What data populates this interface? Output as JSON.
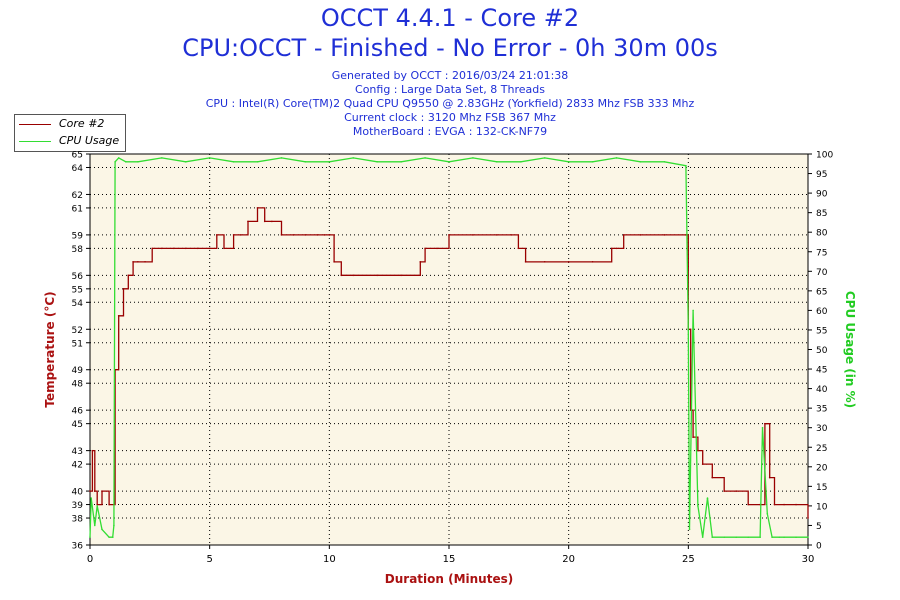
{
  "header": {
    "title": "OCCT 4.4.1 - Core #2",
    "subtitle": "CPU:OCCT - Finished - No Error - 0h 30m 00s",
    "info_lines": [
      "Generated by OCCT : 2016/03/24 21:01:38",
      "Config : Large Data Set, 8 Threads",
      "CPU : Intel(R) Core(TM)2 Quad CPU Q9550 @ 2.83GHz (Yorkfield) 2833 Mhz FSB 333 Mhz",
      "Current clock : 3120 Mhz FSB 367 Mhz",
      "MotherBoard : EVGA : 132-CK-NF79"
    ]
  },
  "chart_data": {
    "type": "line",
    "title": "OCCT 4.4.1 - Core #2",
    "xlabel": "Duration (Minutes)",
    "ylabel_left": "Temperature (°C)",
    "ylabel_right": "CPU Usage (in %)",
    "xlim": [
      0,
      30
    ],
    "ylim_left": [
      36,
      65
    ],
    "ylim_right": [
      0,
      100
    ],
    "grid": true,
    "legend_position": "top-left",
    "x_ticks": [
      0,
      5,
      10,
      15,
      20,
      25,
      30
    ],
    "y_left_ticks": [
      36,
      38,
      39,
      40,
      42,
      43,
      45,
      46,
      48,
      49,
      51,
      52,
      54,
      55,
      56,
      58,
      59,
      61,
      62,
      64,
      65
    ],
    "y_right_ticks": [
      0,
      5,
      10,
      15,
      20,
      25,
      30,
      35,
      40,
      45,
      50,
      55,
      60,
      65,
      70,
      75,
      80,
      85,
      90,
      95,
      100
    ],
    "colors": {
      "temperature": "#990000",
      "usage": "#33dd33",
      "axis_label": "#aa1111",
      "right_label": "#22cc22",
      "plot_bg": "#fbf6e6"
    },
    "series": [
      {
        "name": "Core #2",
        "axis": "left",
        "x": [
          0,
          0.1,
          0.2,
          0.3,
          0.5,
          0.8,
          1.0,
          1.05,
          1.2,
          1.4,
          1.6,
          1.8,
          2.0,
          2.3,
          2.6,
          3.0,
          3.5,
          4.0,
          4.5,
          5.0,
          5.3,
          5.6,
          6.0,
          6.3,
          6.6,
          7.0,
          7.3,
          7.6,
          8.0,
          8.5,
          9.0,
          9.5,
          9.8,
          10.0,
          10.2,
          10.5,
          11.0,
          12.0,
          13.0,
          13.8,
          14.0,
          14.5,
          15.0,
          16.0,
          17.0,
          17.6,
          17.9,
          18.2,
          19.0,
          20.0,
          21.0,
          21.8,
          22.0,
          22.3,
          23.0,
          24.0,
          24.9,
          25.0,
          25.1,
          25.2,
          25.4,
          25.6,
          26.0,
          26.5,
          27.0,
          27.5,
          28.0,
          28.2,
          28.4,
          28.6,
          29.0,
          29.5,
          30.0
        ],
        "values": [
          40,
          43,
          40,
          39,
          40,
          39,
          39,
          49,
          53,
          55,
          56,
          57,
          57,
          57,
          58,
          58,
          58,
          58,
          58,
          58,
          59,
          58,
          59,
          59,
          60,
          61,
          60,
          60,
          59,
          59,
          59,
          59,
          59,
          59,
          57,
          56,
          56,
          56,
          56,
          57,
          58,
          58,
          59,
          59,
          59,
          59,
          58,
          57,
          57,
          57,
          57,
          58,
          58,
          59,
          59,
          59,
          59,
          52,
          46,
          44,
          43,
          42,
          41,
          40,
          40,
          39,
          39,
          45,
          41,
          39,
          39,
          39,
          38
        ]
      },
      {
        "name": "CPU Usage",
        "axis": "right",
        "x": [
          0,
          0.05,
          0.2,
          0.3,
          0.5,
          0.8,
          0.95,
          1.0,
          1.05,
          1.2,
          1.5,
          2.0,
          3.0,
          4.0,
          5.0,
          6.0,
          7.0,
          8.0,
          9.0,
          10.0,
          11.0,
          12.0,
          13.0,
          14.0,
          15.0,
          16.0,
          17.0,
          18.0,
          19.0,
          20.0,
          21.0,
          22.0,
          23.0,
          24.0,
          24.9,
          25.0,
          25.05,
          25.2,
          25.4,
          25.6,
          25.8,
          26.0,
          26.5,
          27.0,
          27.5,
          28.0,
          28.1,
          28.3,
          28.5,
          28.8,
          29.0,
          29.5,
          30.0
        ],
        "values": [
          2,
          12,
          5,
          10,
          4,
          2,
          2,
          5,
          98,
          99,
          98,
          98,
          99,
          98,
          99,
          98,
          98,
          99,
          98,
          98,
          99,
          98,
          98,
          99,
          98,
          99,
          98,
          98,
          99,
          98,
          98,
          99,
          98,
          98,
          97,
          55,
          4,
          60,
          10,
          2,
          12,
          2,
          2,
          2,
          2,
          2,
          30,
          8,
          2,
          2,
          2,
          2,
          2
        ]
      }
    ]
  }
}
